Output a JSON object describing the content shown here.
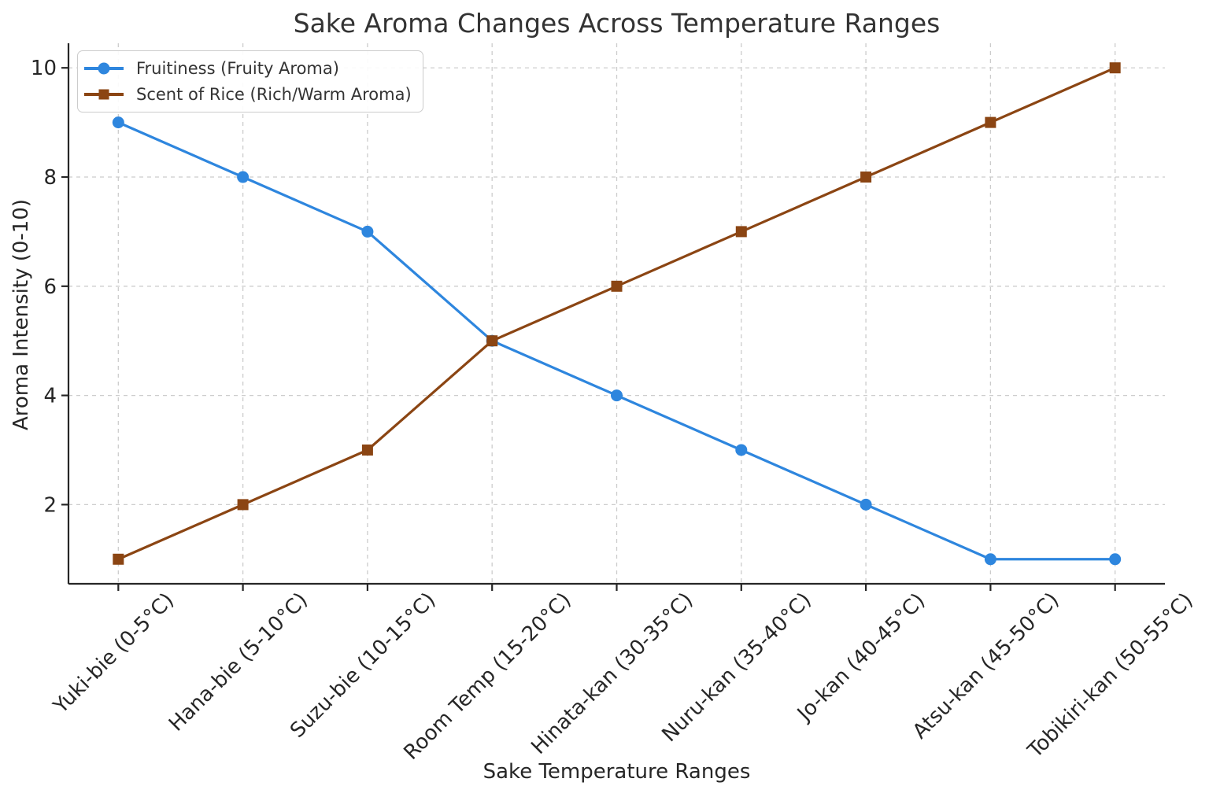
{
  "chart_data": {
    "type": "line",
    "title": "Sake Aroma Changes Across Temperature Ranges",
    "xlabel": "Sake Temperature Ranges",
    "ylabel": "Aroma Intensity (0-10)",
    "categories": [
      "Yuki-bie (0-5°C)",
      "Hana-bie (5-10°C)",
      "Suzu-bie (10-15°C)",
      "Room Temp (15-20°C)",
      "Hinata-kan (30-35°C)",
      "Nuru-kan (35-40°C)",
      "Jo-kan (40-45°C)",
      "Atsu-kan (45-50°C)",
      "Tobikiri-kan (50-55°C)"
    ],
    "series": [
      {
        "name": "Fruitiness (Fruity Aroma)",
        "marker": "circle",
        "color": "#2E86DE",
        "values": [
          9,
          8,
          7,
          5,
          4,
          3,
          2,
          1,
          1
        ]
      },
      {
        "name": "Scent of Rice (Rich/Warm Aroma)",
        "marker": "square",
        "color": "#8B4513",
        "values": [
          1,
          2,
          3,
          5,
          6,
          7,
          8,
          9,
          10
        ]
      }
    ],
    "y_ticks": [
      2,
      4,
      6,
      8,
      10
    ],
    "ylim": [
      0.55,
      10.45
    ],
    "grid": true,
    "grid_style": "dashed",
    "grid_color": "#cccccc",
    "axis_color": "#262626",
    "legend_position": "upper-left",
    "x_tick_rotation_deg": 45
  }
}
